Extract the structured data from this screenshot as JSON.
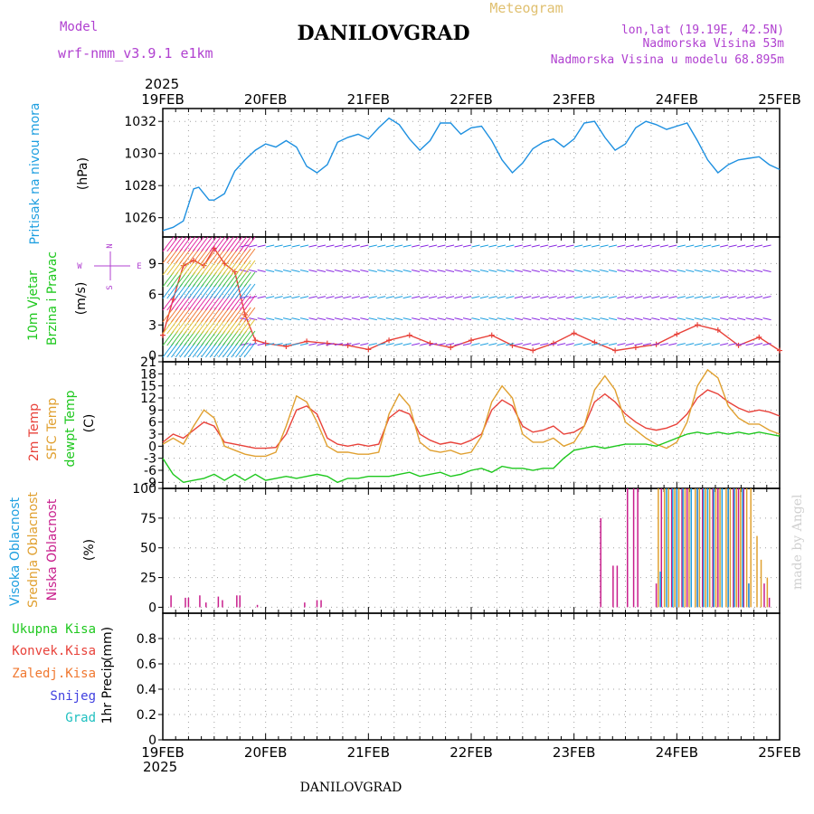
{
  "header": {
    "model_label": "Model",
    "model_value": "wrf-nmm_v3.9.1  e1km",
    "title": "DANILOVGRAD",
    "product": "Meteogram",
    "lonlat": "lon,lat (19.19E, 42.5N)",
    "elevation": "Nadmorska Visina 53m",
    "model_elevation": "Nadmorska Visina u modelu 68.895m",
    "year": "2025",
    "footer_title": "DANILOVGRAD",
    "credit": "made by Angel"
  },
  "compass": {
    "n": "N",
    "w": "W",
    "e": "E",
    "s": "S"
  },
  "colors": {
    "pressure": "#1e90e0",
    "temp2m": "#e8423a",
    "sfc_temp": "#e0a030",
    "dewpt": "#1ec81e",
    "high_cloud": "#1e9fe0",
    "mid_cloud": "#e0a030",
    "low_cloud": "#c81e8c",
    "wind_label": "#1ec81e",
    "total_precip": "#1ec81e",
    "conv_precip": "#e8423a",
    "freezing": "#f07830",
    "snow": "#4040e0",
    "hail": "#20c0c0",
    "purple_text": "#b040d0"
  },
  "chart_data": [
    {
      "type": "line",
      "panel": "pressure",
      "ylabel": [
        "Pritisak na nivou mora",
        "(hPa)"
      ],
      "ylim": [
        1024.8,
        1032.8
      ],
      "yticks": [
        1026,
        1028,
        1030,
        1032
      ],
      "x_tick_labels": [
        "19FEB",
        "20FEB",
        "21FEB",
        "22FEB",
        "23FEB",
        "24FEB",
        "25FEB"
      ],
      "x_days": [
        0,
        6
      ],
      "series": [
        {
          "color_key": "pressure",
          "x": [
            0,
            0.1,
            0.2,
            0.3,
            0.35,
            0.45,
            0.5,
            0.6,
            0.7,
            0.8,
            0.9,
            1.0,
            1.1,
            1.2,
            1.3,
            1.4,
            1.5,
            1.6,
            1.7,
            1.8,
            1.9,
            2.0,
            2.1,
            2.2,
            2.3,
            2.4,
            2.5,
            2.6,
            2.7,
            2.8,
            2.9,
            3.0,
            3.1,
            3.2,
            3.3,
            3.4,
            3.5,
            3.6,
            3.7,
            3.8,
            3.9,
            4.0,
            4.1,
            4.2,
            4.3,
            4.4,
            4.5,
            4.6,
            4.7,
            4.8,
            4.9,
            5.0,
            5.1,
            5.2,
            5.3,
            5.4,
            5.5,
            5.6,
            5.7,
            5.8,
            5.9,
            6.0
          ],
          "values": [
            1025.2,
            1025.4,
            1025.8,
            1027.8,
            1027.9,
            1027.1,
            1027.1,
            1027.5,
            1028.9,
            1029.6,
            1030.2,
            1030.6,
            1030.4,
            1030.8,
            1030.4,
            1029.2,
            1028.8,
            1029.3,
            1030.7,
            1031.0,
            1031.2,
            1030.9,
            1031.6,
            1032.2,
            1031.8,
            1030.9,
            1030.2,
            1030.8,
            1031.9,
            1031.9,
            1031.2,
            1031.6,
            1031.7,
            1030.8,
            1029.6,
            1028.8,
            1029.4,
            1030.3,
            1030.7,
            1030.9,
            1030.4,
            1030.9,
            1031.9,
            1032.0,
            1031.0,
            1030.2,
            1030.6,
            1031.6,
            1032.0,
            1031.8,
            1031.5,
            1031.7,
            1031.9,
            1030.8,
            1029.6,
            1028.8,
            1029.3,
            1029.6,
            1029.7,
            1029.8,
            1029.3,
            1029.0
          ]
        }
      ]
    },
    {
      "type": "line",
      "panel": "wind",
      "ylabel": [
        "10m Vjetar",
        "Brzina i Pravac",
        "(m/s)"
      ],
      "ylim": [
        -0.6,
        11.6
      ],
      "yticks": [
        0,
        3,
        6,
        9
      ],
      "series": [
        {
          "name": "wind speed",
          "color_key": "temp2m",
          "x": [
            0,
            0.1,
            0.2,
            0.3,
            0.4,
            0.5,
            0.6,
            0.7,
            0.8,
            0.9,
            1.0,
            1.2,
            1.4,
            1.6,
            1.8,
            2.0,
            2.2,
            2.4,
            2.6,
            2.8,
            3.0,
            3.2,
            3.4,
            3.6,
            3.8,
            4.0,
            4.2,
            4.4,
            4.6,
            4.8,
            5.0,
            5.2,
            5.4,
            5.6,
            5.8,
            6.0
          ],
          "values": [
            2.0,
            5.5,
            8.8,
            9.3,
            8.8,
            10.5,
            9.0,
            8.2,
            4.0,
            1.5,
            1.2,
            0.9,
            1.4,
            1.2,
            1.0,
            0.6,
            1.5,
            2.0,
            1.2,
            0.8,
            1.5,
            2.0,
            1.0,
            0.5,
            1.2,
            2.2,
            1.3,
            0.5,
            0.8,
            1.1,
            2.1,
            3.0,
            2.5,
            1.0,
            1.8,
            0.5
          ]
        }
      ]
    },
    {
      "type": "line",
      "panel": "temperature",
      "ylabel": [
        "2m Temp",
        "SFC Temp",
        "dewpt Temp",
        "(C)"
      ],
      "ylim": [
        -10.5,
        21
      ],
      "yticks": [
        -9,
        -6,
        -3,
        0,
        3,
        6,
        9,
        12,
        15,
        18,
        21
      ],
      "series": [
        {
          "name": "2m Temp",
          "color_key": "temp2m",
          "x": [
            0,
            0.1,
            0.2,
            0.3,
            0.4,
            0.5,
            0.6,
            0.7,
            0.8,
            0.9,
            1.0,
            1.1,
            1.2,
            1.3,
            1.4,
            1.5,
            1.6,
            1.7,
            1.8,
            1.9,
            2.0,
            2.1,
            2.2,
            2.3,
            2.4,
            2.5,
            2.6,
            2.7,
            2.8,
            2.9,
            3.0,
            3.1,
            3.2,
            3.3,
            3.4,
            3.5,
            3.6,
            3.7,
            3.8,
            3.9,
            4.0,
            4.1,
            4.2,
            4.3,
            4.4,
            4.5,
            4.6,
            4.7,
            4.8,
            4.9,
            5.0,
            5.1,
            5.2,
            5.3,
            5.4,
            5.5,
            5.6,
            5.7,
            5.8,
            5.9,
            6.0
          ],
          "values": [
            1.0,
            3.0,
            2.0,
            4.0,
            6.0,
            5.0,
            1.0,
            0.5,
            0.0,
            -0.5,
            -0.5,
            -0.3,
            3.0,
            9.0,
            10.0,
            8.0,
            2.0,
            0.5,
            0.0,
            0.5,
            0.0,
            0.5,
            7.0,
            9.0,
            8.0,
            3.0,
            1.5,
            0.5,
            1.0,
            0.5,
            1.5,
            3.0,
            9.0,
            11.5,
            10.0,
            5.0,
            3.5,
            4.0,
            5.0,
            3.0,
            3.5,
            5.0,
            11.0,
            13.0,
            11.0,
            8.0,
            6.0,
            4.5,
            4.0,
            4.5,
            5.5,
            8.0,
            12.0,
            14.0,
            13.0,
            11.0,
            9.5,
            8.5,
            9.0,
            8.5,
            7.5
          ]
        },
        {
          "name": "SFC Temp",
          "color_key": "sfc_temp",
          "x": [
            0,
            0.1,
            0.2,
            0.3,
            0.4,
            0.5,
            0.6,
            0.7,
            0.8,
            0.9,
            1.0,
            1.1,
            1.2,
            1.3,
            1.4,
            1.5,
            1.6,
            1.7,
            1.8,
            1.9,
            2.0,
            2.1,
            2.2,
            2.3,
            2.4,
            2.5,
            2.6,
            2.7,
            2.8,
            2.9,
            3.0,
            3.1,
            3.2,
            3.3,
            3.4,
            3.5,
            3.6,
            3.7,
            3.8,
            3.9,
            4.0,
            4.1,
            4.2,
            4.3,
            4.4,
            4.5,
            4.6,
            4.7,
            4.8,
            4.9,
            5.0,
            5.1,
            5.2,
            5.3,
            5.4,
            5.5,
            5.6,
            5.7,
            5.8,
            5.9,
            6.0
          ],
          "values": [
            0.5,
            2.0,
            0.5,
            5.0,
            9.0,
            7.0,
            0.0,
            -1.0,
            -2.0,
            -2.5,
            -2.5,
            -1.5,
            5.0,
            12.5,
            11.0,
            6.0,
            0.0,
            -1.5,
            -1.5,
            -2.0,
            -2.0,
            -1.5,
            8.0,
            13.0,
            10.0,
            1.0,
            -1.0,
            -1.5,
            -1.0,
            -2.0,
            -1.5,
            2.5,
            11.0,
            15.0,
            12.0,
            3.0,
            1.0,
            1.0,
            2.0,
            0.0,
            1.0,
            5.0,
            14.0,
            17.5,
            14.0,
            6.0,
            4.0,
            2.0,
            0.5,
            -0.5,
            1.0,
            6.0,
            15.0,
            19.0,
            17.0,
            10.0,
            7.0,
            5.5,
            5.5,
            4.0,
            3.0
          ]
        },
        {
          "name": "dewpt Temp",
          "color_key": "dewpt",
          "x": [
            0,
            0.1,
            0.2,
            0.3,
            0.4,
            0.5,
            0.6,
            0.7,
            0.8,
            0.9,
            1.0,
            1.1,
            1.2,
            1.3,
            1.4,
            1.5,
            1.6,
            1.7,
            1.8,
            1.9,
            2.0,
            2.1,
            2.2,
            2.3,
            2.4,
            2.5,
            2.6,
            2.7,
            2.8,
            2.9,
            3.0,
            3.1,
            3.2,
            3.3,
            3.4,
            3.5,
            3.6,
            3.7,
            3.8,
            3.9,
            4.0,
            4.1,
            4.2,
            4.3,
            4.4,
            4.5,
            4.6,
            4.7,
            4.8,
            4.9,
            5.0,
            5.1,
            5.2,
            5.3,
            5.4,
            5.5,
            5.6,
            5.7,
            5.8,
            5.9,
            6.0
          ],
          "values": [
            -3.0,
            -7.0,
            -9.0,
            -8.5,
            -8.0,
            -7.0,
            -8.5,
            -7.0,
            -8.5,
            -7.0,
            -8.5,
            -8.0,
            -7.5,
            -8.0,
            -7.5,
            -7.0,
            -7.5,
            -9.0,
            -8.0,
            -8.0,
            -7.5,
            -7.5,
            -7.5,
            -7.0,
            -6.5,
            -7.5,
            -7.0,
            -6.5,
            -7.5,
            -7.0,
            -6.0,
            -5.5,
            -6.5,
            -5.0,
            -5.5,
            -5.5,
            -6.0,
            -5.5,
            -5.5,
            -3.0,
            -1.0,
            -0.5,
            0.0,
            -0.5,
            0.0,
            0.5,
            0.5,
            0.5,
            0.0,
            1.0,
            2.0,
            3.0,
            3.5,
            3.0,
            3.5,
            3.0,
            3.5,
            3.0,
            3.5,
            3.0,
            2.5
          ]
        }
      ]
    },
    {
      "type": "bar",
      "panel": "cloud",
      "ylabel": [
        "Visoka Oblacnost",
        "Srednja Oblacnost",
        "Niska Oblacnost",
        "(%)"
      ],
      "ylim": [
        -5,
        100
      ],
      "yticks": [
        0,
        25,
        50,
        75,
        100
      ],
      "series": [
        {
          "name": "Niska Oblacnost",
          "color_key": "low_cloud",
          "x": [
            0.08,
            0.22,
            0.25,
            0.36,
            0.42,
            0.54,
            0.58,
            0.72,
            0.75,
            0.92,
            1.38,
            1.5,
            1.54,
            4.26,
            4.38,
            4.42,
            4.52,
            4.58,
            4.62,
            4.8,
            4.85,
            4.95,
            5.0,
            5.05,
            5.1,
            5.2,
            5.25,
            5.35,
            5.4,
            5.5,
            5.55,
            5.6,
            5.65,
            5.7,
            5.85,
            5.9
          ],
          "values": [
            10,
            8,
            8,
            10,
            4,
            9,
            6,
            10,
            10,
            2,
            4,
            6,
            6,
            75,
            35,
            35,
            100,
            100,
            100,
            20,
            100,
            100,
            100,
            100,
            100,
            100,
            100,
            100,
            100,
            100,
            100,
            100,
            100,
            20,
            20,
            8
          ]
        },
        {
          "name": "Srednja Oblacnost",
          "color_key": "mid_cloud",
          "x": [
            4.82,
            4.88,
            4.92,
            4.98,
            5.02,
            5.08,
            5.12,
            5.18,
            5.22,
            5.28,
            5.32,
            5.38,
            5.42,
            5.48,
            5.52,
            5.58,
            5.62,
            5.68,
            5.72,
            5.78,
            5.82,
            5.88
          ],
          "values": [
            100,
            100,
            100,
            100,
            100,
            100,
            100,
            100,
            100,
            100,
            100,
            100,
            100,
            100,
            100,
            100,
            100,
            100,
            100,
            60,
            40,
            25
          ]
        },
        {
          "name": "Visoka Oblacnost",
          "color_key": "high_cloud",
          "x": [
            4.84,
            4.9,
            4.96,
            5.0,
            5.06,
            5.14,
            5.2,
            5.26,
            5.3,
            5.36,
            5.44,
            5.5,
            5.56,
            5.64,
            5.7
          ],
          "values": [
            30,
            100,
            100,
            100,
            100,
            100,
            100,
            100,
            100,
            100,
            100,
            100,
            100,
            100,
            20
          ]
        }
      ]
    },
    {
      "type": "bar",
      "panel": "precip",
      "ylabel": [
        "1hr Precip",
        "(mm)"
      ],
      "legend": [
        "Ukupna Kisa",
        "Konvek.Kisa",
        "Zaledj.Kisa",
        "Snijeg",
        "Grad"
      ],
      "ylim": [
        0,
        1.0
      ],
      "yticks": [
        0,
        0.2,
        0.4,
        0.6,
        0.8
      ],
      "series": []
    }
  ]
}
